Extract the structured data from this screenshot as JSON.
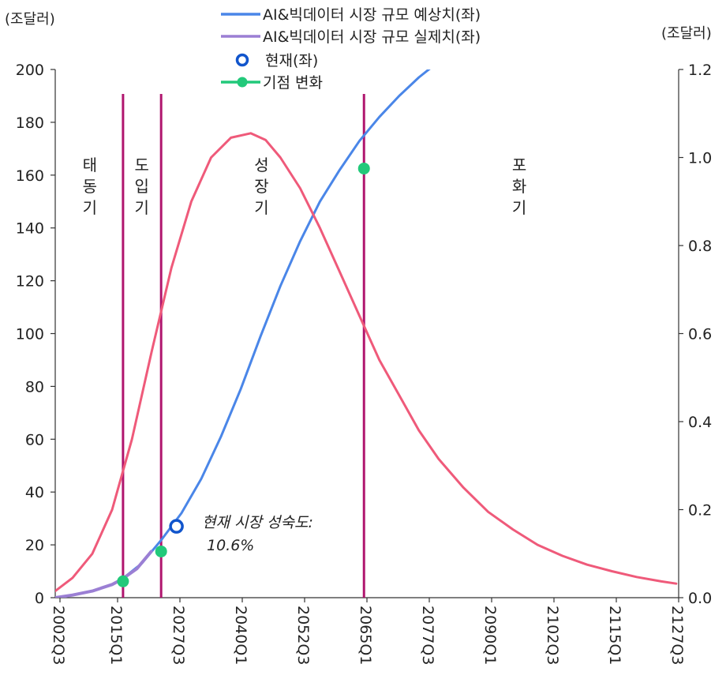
{
  "chart_data": {
    "type": "line",
    "left_axis_unit": "(조달러)",
    "right_axis_unit": "(조달러)",
    "x_tick_labels": [
      "2002Q3",
      "2015Q1",
      "2027Q3",
      "2040Q1",
      "2052Q3",
      "2065Q1",
      "2077Q3",
      "2090Q1",
      "2102Q3",
      "2115Q1",
      "2127Q3"
    ],
    "xlim": [
      2002.5,
      2128.5
    ],
    "ylim_left": [
      0,
      200
    ],
    "ylim_right": [
      0.0,
      1.2
    ],
    "y_ticks_left": [
      "0",
      "20",
      "40",
      "60",
      "80",
      "100",
      "120",
      "140",
      "160",
      "180",
      "200"
    ],
    "y_ticks_right": [
      "0.0",
      "0.2",
      "0.4",
      "0.6",
      "0.8",
      "1.0",
      "1.2"
    ],
    "legend": [
      {
        "label": "AI&빅데이터 시장 규모 예상치(좌)",
        "marker": "line",
        "color": "#4a86e8"
      },
      {
        "label": "AI&빅데이터 시장 규모 실제치(좌)",
        "marker": "line",
        "color": "#9b7fd4"
      },
      {
        "label": "현재(좌)",
        "marker": "open-circle",
        "color": "#1155cc"
      },
      {
        "label": "기점 변화",
        "marker": "line-dot",
        "color": "#22c97a"
      }
    ],
    "series": [
      {
        "name": "AI&빅데이터 시장 규모 예상치(좌)",
        "axis": "left",
        "color": "#4a86e8",
        "x": [
          2002.5,
          2006,
          2010,
          2014,
          2016,
          2020,
          2024,
          2028,
          2032,
          2036,
          2040,
          2044,
          2048,
          2052,
          2056,
          2060,
          2064,
          2068,
          2072,
          2076,
          2080
        ],
        "y": [
          0,
          1,
          2.5,
          5,
          7,
          13,
          22,
          32,
          45,
          61,
          79,
          99,
          118,
          135,
          150,
          162,
          173,
          182,
          190,
          197,
          203
        ]
      },
      {
        "name": "AI&빅데이터 시장 규모 실제치(좌)",
        "axis": "left",
        "color": "#9b7fd4",
        "x": [
          2002.5,
          2006,
          2010,
          2014,
          2016,
          2019,
          2021.9
        ],
        "y": [
          0,
          1,
          2.5,
          5,
          7,
          11,
          17.5
        ]
      },
      {
        "name": "growth-rate",
        "axis": "right",
        "color": "#ef5a7a",
        "x": [
          2002.5,
          2006,
          2010,
          2014,
          2018,
          2022,
          2026,
          2030,
          2034,
          2038,
          2042,
          2045,
          2048,
          2052,
          2056,
          2060,
          2064,
          2068,
          2072,
          2076,
          2080,
          2085,
          2090,
          2095,
          2100,
          2105,
          2110,
          2115,
          2120,
          2125,
          2128
        ],
        "y": [
          0.015,
          0.045,
          0.1,
          0.2,
          0.36,
          0.56,
          0.75,
          0.9,
          1.0,
          1.045,
          1.055,
          1.04,
          1.0,
          0.93,
          0.84,
          0.74,
          0.64,
          0.54,
          0.46,
          0.38,
          0.315,
          0.25,
          0.195,
          0.155,
          0.12,
          0.095,
          0.075,
          0.06,
          0.047,
          0.037,
          0.032
        ]
      }
    ],
    "phase_lines_x": [
      2016.2,
      2023.9,
      2064.9
    ],
    "phase_line_color": "#b0156e",
    "phases": [
      {
        "label": "태동기",
        "x": 2009.5
      },
      {
        "label": "도입기",
        "x": 2020.0
      },
      {
        "label": "성장기",
        "x": 2044.2
      },
      {
        "label": "포화기",
        "x": 2096.3
      }
    ],
    "turning_points": [
      {
        "x": 2016.2,
        "y": 6.2
      },
      {
        "x": 2023.9,
        "y": 17.5
      },
      {
        "x": 2064.9,
        "y": 162.5
      }
    ],
    "current_point": {
      "x": 2027.0,
      "y": 27.0
    },
    "annotation": {
      "line1": "현재 시장 성숙도:",
      "line2": "10.6%"
    }
  }
}
